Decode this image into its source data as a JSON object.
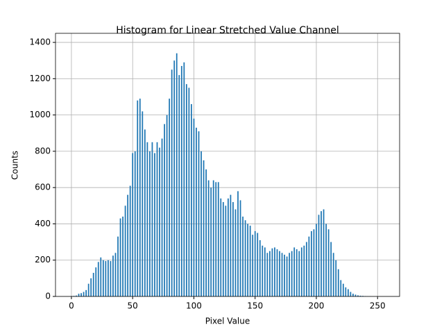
{
  "chart_data": {
    "type": "bar",
    "title": "Histogram for Linear Stretched Value Channel",
    "x_label": "Pixel Value",
    "y_label": "Counts",
    "x": [
      0,
      2,
      4,
      6,
      8,
      10,
      12,
      14,
      16,
      18,
      20,
      22,
      24,
      26,
      28,
      30,
      32,
      34,
      36,
      38,
      40,
      42,
      44,
      46,
      48,
      50,
      52,
      54,
      56,
      58,
      60,
      62,
      64,
      66,
      68,
      70,
      72,
      74,
      76,
      78,
      80,
      82,
      84,
      86,
      88,
      90,
      92,
      94,
      96,
      98,
      100,
      102,
      104,
      106,
      108,
      110,
      112,
      114,
      116,
      118,
      120,
      122,
      124,
      126,
      128,
      130,
      132,
      134,
      136,
      138,
      140,
      142,
      144,
      146,
      148,
      150,
      152,
      154,
      156,
      158,
      160,
      162,
      164,
      166,
      168,
      170,
      172,
      174,
      176,
      178,
      180,
      182,
      184,
      186,
      188,
      190,
      192,
      194,
      196,
      198,
      200,
      202,
      204,
      206,
      208,
      210,
      212,
      214,
      216,
      218,
      220,
      222,
      224,
      226,
      228,
      230,
      232,
      234,
      236,
      238,
      240,
      242,
      244
    ],
    "values": [
      2,
      3,
      5,
      15,
      18,
      25,
      35,
      70,
      100,
      130,
      160,
      190,
      215,
      200,
      195,
      200,
      195,
      225,
      240,
      330,
      430,
      440,
      500,
      560,
      610,
      790,
      800,
      1080,
      1090,
      1020,
      920,
      850,
      800,
      850,
      790,
      850,
      820,
      870,
      950,
      1000,
      1090,
      1250,
      1300,
      1340,
      1220,
      1270,
      1290,
      1170,
      1150,
      1060,
      980,
      930,
      910,
      800,
      750,
      700,
      640,
      600,
      640,
      630,
      630,
      540,
      520,
      500,
      540,
      560,
      520,
      480,
      580,
      530,
      440,
      420,
      400,
      390,
      340,
      360,
      350,
      310,
      280,
      270,
      240,
      250,
      265,
      270,
      260,
      250,
      240,
      230,
      220,
      240,
      250,
      270,
      260,
      250,
      270,
      280,
      300,
      330,
      360,
      370,
      400,
      450,
      470,
      480,
      400,
      370,
      300,
      240,
      200,
      150,
      90,
      70,
      50,
      40,
      25,
      15,
      10,
      6,
      4,
      3,
      2,
      1,
      1
    ],
    "color": "#1f77b4",
    "xlim": [
      -13,
      268
    ],
    "ylim": [
      0,
      1450
    ],
    "xticks": [
      0,
      50,
      100,
      150,
      200,
      250
    ],
    "yticks": [
      0,
      200,
      400,
      600,
      800,
      1000,
      1200,
      1400
    ],
    "grid": true
  }
}
